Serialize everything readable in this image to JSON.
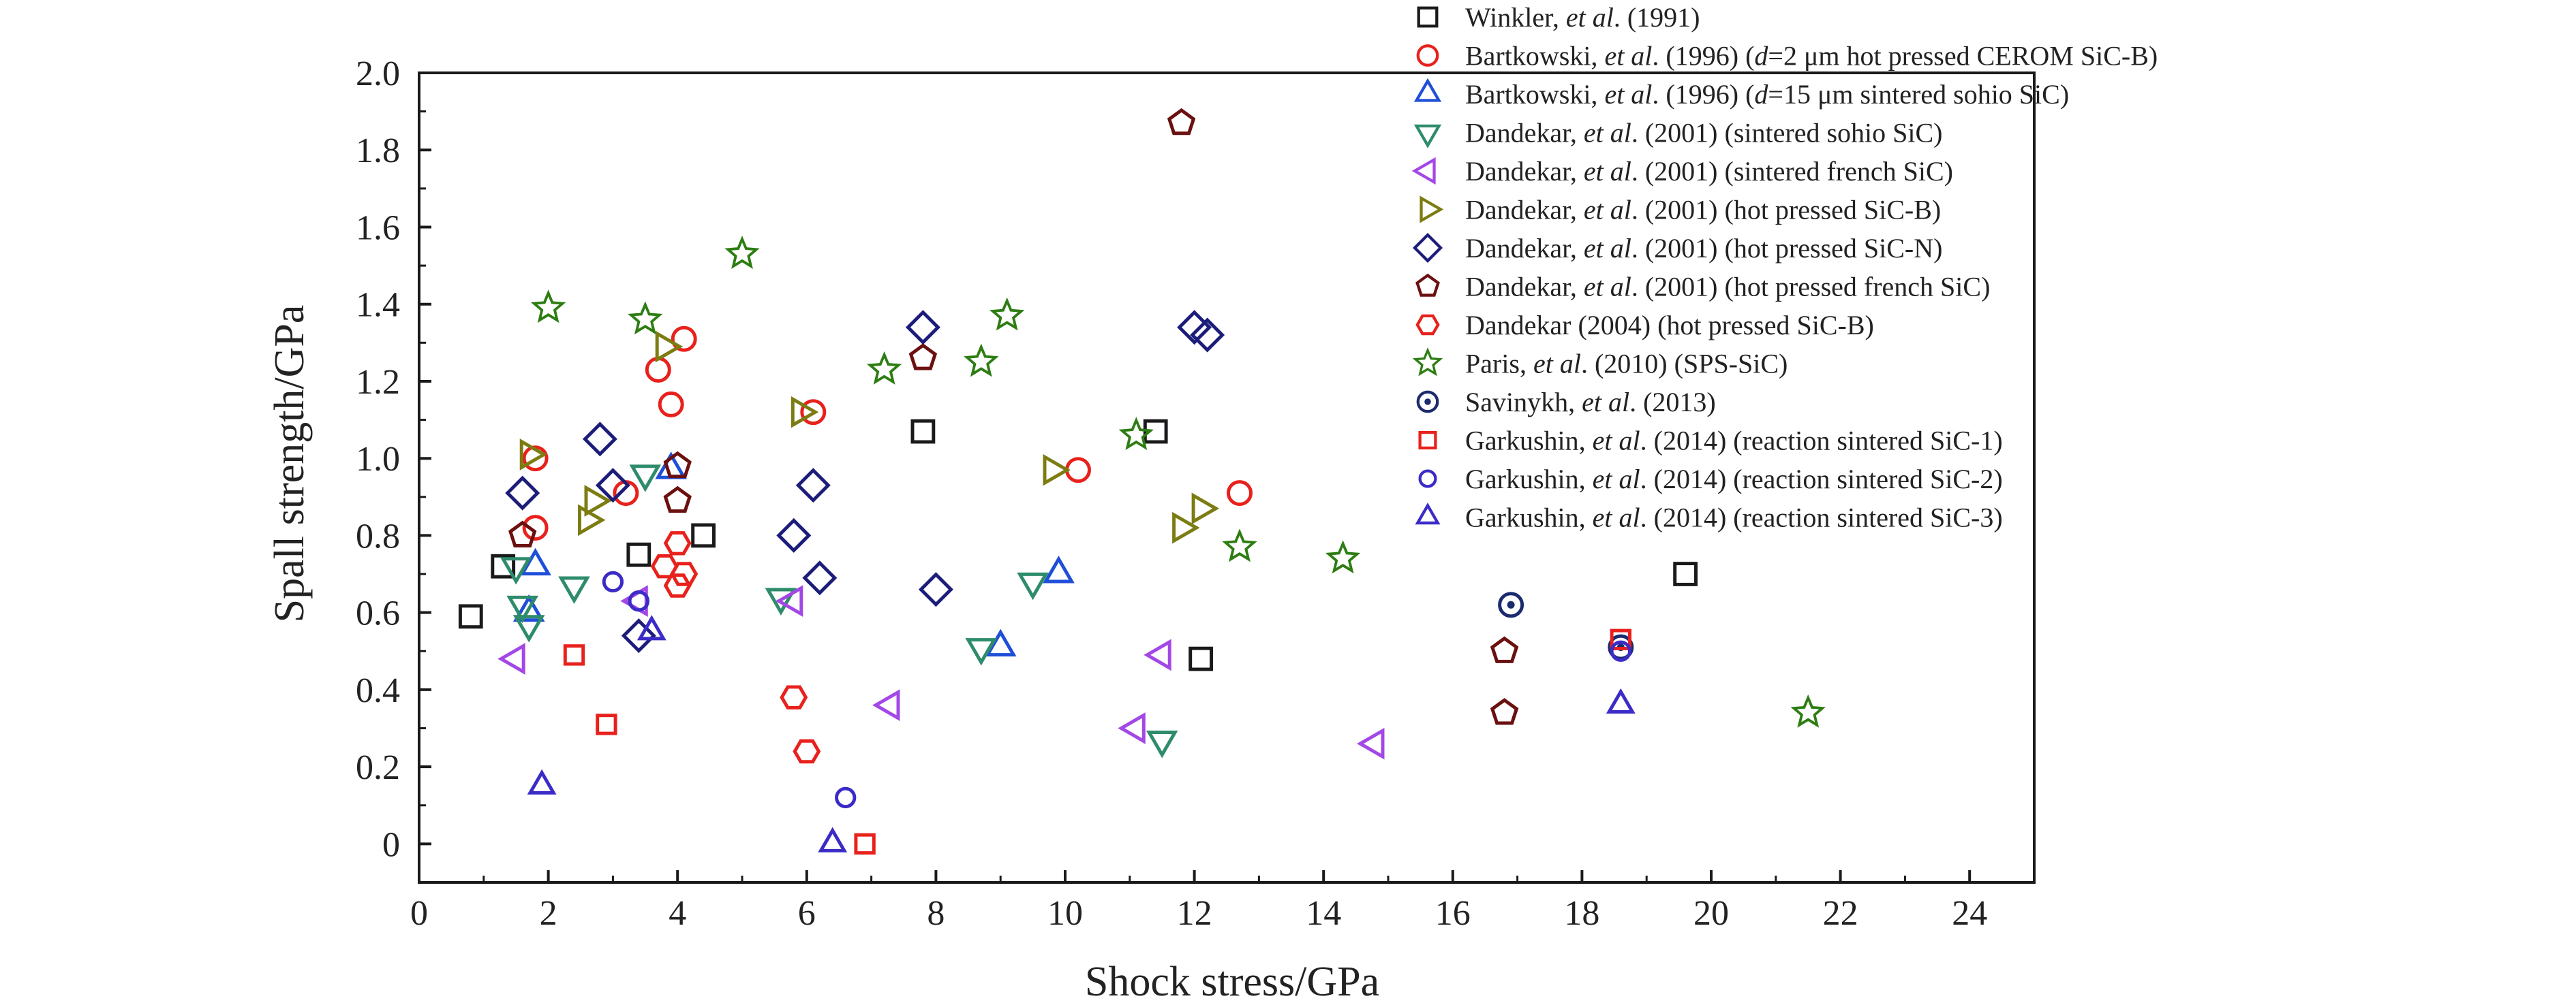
{
  "chart_data": {
    "type": "scatter",
    "xlabel": "Shock stress/GPa",
    "ylabel": "Spall strength/GPa",
    "xlim": [
      0,
      25
    ],
    "ylim": [
      -0.1,
      2.0
    ],
    "xticks": [
      0,
      2,
      4,
      6,
      8,
      10,
      12,
      14,
      16,
      18,
      20,
      22,
      24
    ],
    "yticks": [
      0,
      0.2,
      0.4,
      0.6,
      0.8,
      1.0,
      1.2,
      1.4,
      1.6,
      1.8,
      2.0
    ],
    "xtick_labels": [
      "0",
      "2",
      "4",
      "6",
      "8",
      "10",
      "12",
      "14",
      "16",
      "18",
      "20",
      "22",
      "24"
    ],
    "ytick_labels": [
      "0",
      "0.2",
      "0.4",
      "0.6",
      "0.8",
      "1.0",
      "1.2",
      "1.4",
      "1.6",
      "1.8",
      "2.0"
    ],
    "grid": false,
    "legend_position": "top-right, outside plot",
    "series": [
      {
        "label_parts": [
          [
            "Winkler, ",
            "n"
          ],
          [
            "et al",
            "i"
          ],
          [
            ". (1991)",
            "n"
          ]
        ],
        "marker": "square",
        "color": "#1a1a1a",
        "points": [
          [
            0.8,
            0.59
          ],
          [
            1.3,
            0.72
          ],
          [
            3.4,
            0.75
          ],
          [
            4.4,
            0.8
          ],
          [
            7.8,
            1.07
          ],
          [
            11.4,
            1.07
          ],
          [
            12.1,
            0.48
          ],
          [
            19.6,
            0.7
          ]
        ]
      },
      {
        "label_parts": [
          [
            "Bartkowski, ",
            "n"
          ],
          [
            "et al",
            "i"
          ],
          [
            ". (1996) (",
            "n"
          ],
          [
            "d",
            "i"
          ],
          [
            "=2 μm hot pressed CEROM SiC-B)",
            "n"
          ]
        ],
        "marker": "circle",
        "color": "#e8211c",
        "points": [
          [
            1.8,
            1.0
          ],
          [
            1.8,
            0.82
          ],
          [
            3.9,
            1.14
          ],
          [
            4.1,
            1.31
          ],
          [
            3.7,
            1.23
          ],
          [
            6.1,
            1.12
          ],
          [
            10.2,
            0.97
          ],
          [
            12.7,
            0.91
          ],
          [
            3.2,
            0.91
          ]
        ]
      },
      {
        "label_parts": [
          [
            "Bartkowski, ",
            "n"
          ],
          [
            "et al",
            "i"
          ],
          [
            ". (1996) (",
            "n"
          ],
          [
            "d",
            "i"
          ],
          [
            "=15 μm sintered sohio SiC)",
            "n"
          ]
        ],
        "marker": "triangle-up",
        "color": "#1f4fd8",
        "points": [
          [
            1.8,
            0.72
          ],
          [
            1.7,
            0.6
          ],
          [
            3.9,
            0.97
          ],
          [
            9.0,
            0.51
          ],
          [
            9.9,
            0.7
          ]
        ]
      },
      {
        "label_parts": [
          [
            "Dandekar, ",
            "n"
          ],
          [
            "et al",
            "i"
          ],
          [
            ". (2001) (sintered sohio SiC)",
            "n"
          ]
        ],
        "marker": "triangle-down",
        "color": "#2e8c6b",
        "points": [
          [
            1.5,
            0.72
          ],
          [
            1.6,
            0.62
          ],
          [
            1.7,
            0.57
          ],
          [
            2.4,
            0.67
          ],
          [
            3.5,
            0.96
          ],
          [
            5.6,
            0.64
          ],
          [
            8.7,
            0.51
          ],
          [
            9.5,
            0.68
          ],
          [
            11.5,
            0.27
          ]
        ]
      },
      {
        "label_parts": [
          [
            "Dandekar, ",
            "n"
          ],
          [
            "et al",
            "i"
          ],
          [
            ". (2001) (sintered french SiC)",
            "n"
          ]
        ],
        "marker": "triangle-left",
        "color": "#a347e6",
        "points": [
          [
            1.5,
            0.48
          ],
          [
            3.4,
            0.63
          ],
          [
            5.8,
            0.63
          ],
          [
            7.3,
            0.36
          ],
          [
            11.1,
            0.3
          ],
          [
            11.5,
            0.49
          ],
          [
            14.8,
            0.26
          ]
        ]
      },
      {
        "label_parts": [
          [
            "Dandekar, ",
            "n"
          ],
          [
            "et al",
            "i"
          ],
          [
            ". (2001) (hot pressed SiC-B)",
            "n"
          ]
        ],
        "marker": "triangle-right",
        "color": "#7c7c12",
        "points": [
          [
            1.7,
            1.01
          ],
          [
            2.6,
            0.84
          ],
          [
            2.7,
            0.89
          ],
          [
            3.8,
            1.29
          ],
          [
            5.9,
            1.12
          ],
          [
            9.8,
            0.97
          ],
          [
            11.8,
            0.82
          ],
          [
            12.1,
            0.87
          ]
        ]
      },
      {
        "label_parts": [
          [
            "Dandekar, ",
            "n"
          ],
          [
            "et al",
            "i"
          ],
          [
            ". (2001) (hot pressed SiC-N)",
            "n"
          ]
        ],
        "marker": "diamond",
        "color": "#1c1c7a",
        "points": [
          [
            1.6,
            0.91
          ],
          [
            2.8,
            1.05
          ],
          [
            3.0,
            0.93
          ],
          [
            3.4,
            0.54
          ],
          [
            5.8,
            0.8
          ],
          [
            6.1,
            0.93
          ],
          [
            6.2,
            0.69
          ],
          [
            7.8,
            1.34
          ],
          [
            8.0,
            0.66
          ],
          [
            12.0,
            1.34
          ],
          [
            12.2,
            1.32
          ]
        ]
      },
      {
        "label_parts": [
          [
            "Dandekar, ",
            "n"
          ],
          [
            "et al",
            "i"
          ],
          [
            ". (2001) (hot pressed french SiC)",
            "n"
          ]
        ],
        "marker": "pentagon",
        "color": "#6b1010",
        "points": [
          [
            1.6,
            0.8
          ],
          [
            4.0,
            0.98
          ],
          [
            4.0,
            0.89
          ],
          [
            7.8,
            1.26
          ],
          [
            11.8,
            1.87
          ],
          [
            16.8,
            0.5
          ],
          [
            16.8,
            0.34
          ]
        ]
      },
      {
        "label_parts": [
          [
            "Dandekar (2004) (hot pressed SiC-B)",
            "n"
          ]
        ],
        "marker": "hexagon",
        "color": "#e8211c",
        "points": [
          [
            3.8,
            0.72
          ],
          [
            4.0,
            0.78
          ],
          [
            4.0,
            0.67
          ],
          [
            4.1,
            0.7
          ],
          [
            5.8,
            0.38
          ],
          [
            6.0,
            0.24
          ]
        ]
      },
      {
        "label_parts": [
          [
            "Paris, ",
            "n"
          ],
          [
            "et al",
            "i"
          ],
          [
            ". (2010) (SPS-SiC)",
            "n"
          ]
        ],
        "marker": "star",
        "color": "#2d7d12",
        "points": [
          [
            2.0,
            1.39
          ],
          [
            3.5,
            1.36
          ],
          [
            5.0,
            1.53
          ],
          [
            7.2,
            1.23
          ],
          [
            8.7,
            1.25
          ],
          [
            9.1,
            1.37
          ],
          [
            11.1,
            1.06
          ],
          [
            12.7,
            0.77
          ],
          [
            14.3,
            0.74
          ],
          [
            21.5,
            0.34
          ]
        ]
      },
      {
        "label_parts": [
          [
            "Savinykh, ",
            "n"
          ],
          [
            "et al",
            "i"
          ],
          [
            ". (2013)",
            "n"
          ]
        ],
        "marker": "circle-dot",
        "color": "#1c2a6e",
        "points": [
          [
            16.9,
            0.62
          ],
          [
            18.6,
            0.51
          ]
        ]
      },
      {
        "label_parts": [
          [
            "Garkushin, ",
            "n"
          ],
          [
            "et al",
            "i"
          ],
          [
            ". (2014) (reaction sintered SiC-1)",
            "n"
          ]
        ],
        "marker": "square-small",
        "color": "#e8211c",
        "points": [
          [
            2.4,
            0.49
          ],
          [
            2.9,
            0.31
          ],
          [
            6.9,
            0.0
          ],
          [
            18.6,
            0.53
          ]
        ]
      },
      {
        "label_parts": [
          [
            "Garkushin, ",
            "n"
          ],
          [
            "et al",
            "i"
          ],
          [
            ". (2014) (reaction sintered SiC-2)",
            "n"
          ]
        ],
        "marker": "circle-small",
        "color": "#3b2bc7",
        "points": [
          [
            3.0,
            0.68
          ],
          [
            3.4,
            0.63
          ],
          [
            6.6,
            0.12
          ],
          [
            18.6,
            0.5
          ]
        ]
      },
      {
        "label_parts": [
          [
            "Garkushin, ",
            "n"
          ],
          [
            "et al",
            "i"
          ],
          [
            ". (2014) (reaction sintered SiC-3)",
            "n"
          ]
        ],
        "marker": "triangle-up-small",
        "color": "#3b2bc7",
        "points": [
          [
            1.9,
            0.15
          ],
          [
            3.6,
            0.55
          ],
          [
            6.4,
            0.0
          ],
          [
            18.6,
            0.36
          ]
        ]
      }
    ]
  }
}
